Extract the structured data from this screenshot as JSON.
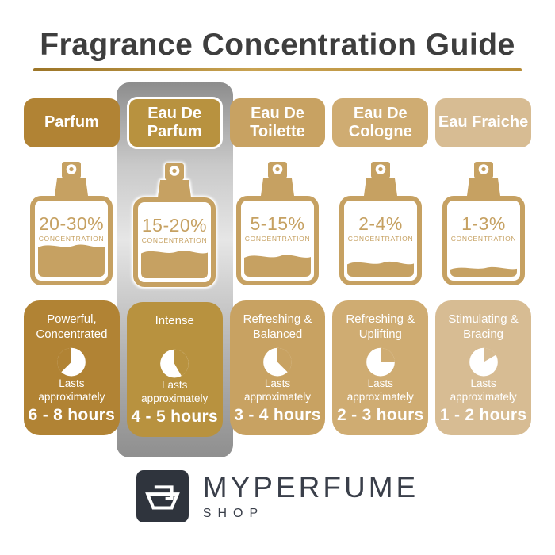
{
  "title": "Fragrance Concentration Guide",
  "colors": {
    "title_text": "#3E3E3E",
    "underline_gold": "#B08A3E",
    "bottle_gold": "#C6A162",
    "silver_light": "#E6E6E6",
    "silver_dark": "#8D8D8D",
    "card_text": "#FFFFFF",
    "logo_dark": "#2F343D",
    "logo_text": "#3A3F4A",
    "background": "#FFFFFF"
  },
  "columns": [
    {
      "name": "Parfum",
      "color": "#B18334",
      "highlighted": false,
      "bottle": {
        "concentration": "20-30%",
        "label": "CONCENTRATION",
        "fill_level": 0.42
      },
      "card": {
        "profile": "Powerful, Concentrated",
        "lasts": "Lasts approximately",
        "duration": "6 - 8 hours",
        "clock": {
          "start_deg": 225,
          "end_deg": 360
        }
      }
    },
    {
      "name": "Eau De Parfum",
      "color": "#B8923F",
      "highlighted": true,
      "bottle": {
        "concentration": "15-20%",
        "label": "CONCENTRATION",
        "fill_level": 0.36
      },
      "card": {
        "profile": "Intense",
        "lasts": "Lasts approximately",
        "duration": "4 - 5 hours",
        "clock": {
          "start_deg": 0,
          "end_deg": 150
        }
      }
    },
    {
      "name": "Eau De Toilette",
      "color": "#C8A262",
      "highlighted": false,
      "bottle": {
        "concentration": "5-15%",
        "label": "CONCENTRATION",
        "fill_level": 0.28
      },
      "card": {
        "profile": "Refreshing & Balanced",
        "lasts": "Lasts approximately",
        "duration": "3 - 4 hours",
        "clock": {
          "start_deg": 0,
          "end_deg": 135
        }
      }
    },
    {
      "name": "Eau De Cologne",
      "color": "#CFAC72",
      "highlighted": false,
      "bottle": {
        "concentration": "2-4%",
        "label": "CONCENTRATION",
        "fill_level": 0.19
      },
      "card": {
        "profile": "Refreshing & Uplifting",
        "lasts": "Lasts approximately",
        "duration": "2 - 3 hours",
        "clock": {
          "start_deg": 0,
          "end_deg": 90
        }
      }
    },
    {
      "name": "Eau Fraiche",
      "color": "#D7BC93",
      "highlighted": false,
      "bottle": {
        "concentration": "1-3%",
        "label": "CONCENTRATION",
        "fill_level": 0.12
      },
      "card": {
        "profile": "Stimulating & Bracing",
        "lasts": "Lasts approximately",
        "duration": "1 - 2 hours",
        "clock": {
          "start_deg": 0,
          "end_deg": 60
        }
      }
    }
  ],
  "footer": {
    "brand": "MYPERFUME",
    "sub": "SHOP"
  }
}
